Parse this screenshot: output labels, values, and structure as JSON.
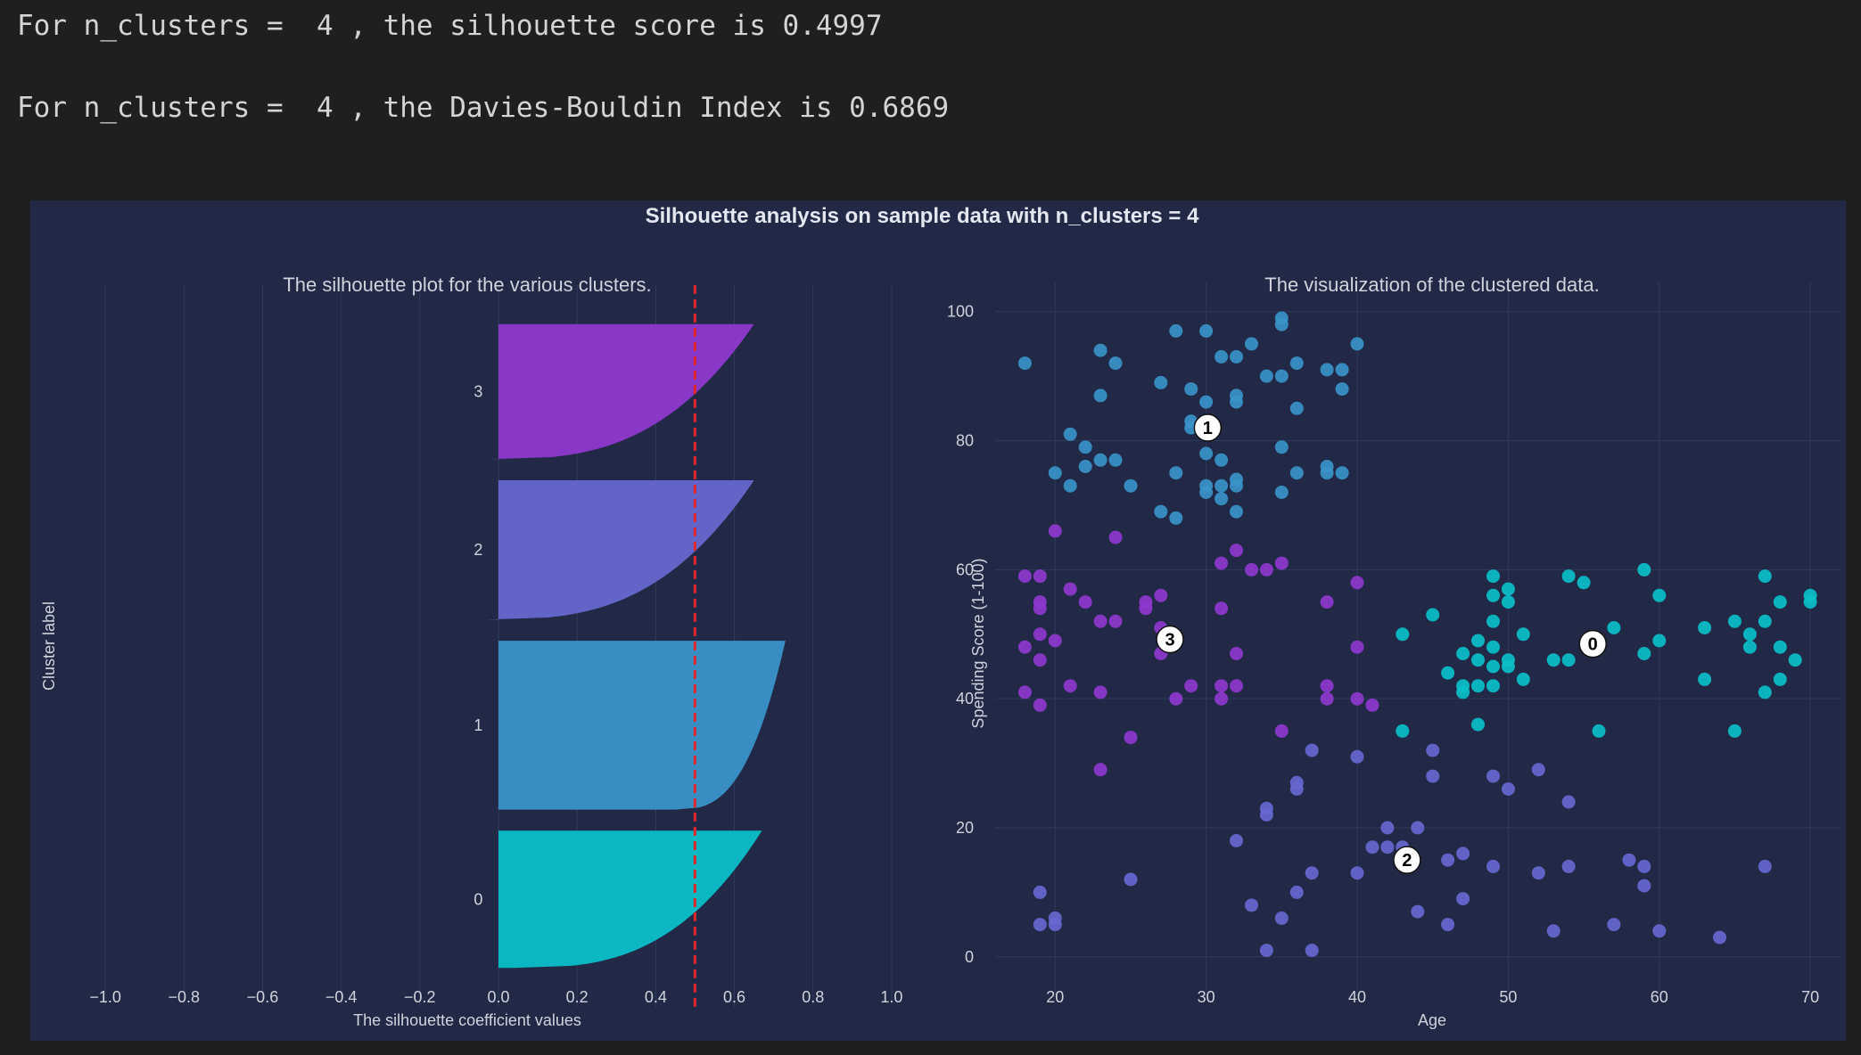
{
  "output": {
    "line1": "For n_clusters =  4 , the silhouette score is 0.4997",
    "line2": "For n_clusters =  4 , the Davies-Bouldin Index is 0.6869"
  },
  "colors": {
    "cell_background": "#1f1f1f",
    "figure_background": "#212946",
    "text": "#d0d3dc",
    "grid": "#2e3a5c",
    "cluster_0": "#0abfca",
    "cluster_1": "#3a93c9",
    "cluster_2": "#6767d0",
    "cluster_3": "#8e38cf",
    "average_line": "#e0262b"
  },
  "chart_data": [
    {
      "type": "area",
      "chart_name": "silhouette",
      "suptitle": "Silhouette analysis on sample data with n_clusters = 4",
      "title": "The silhouette plot for the various clusters.",
      "xlabel": "The silhouette coefficient values",
      "ylabel": "Cluster label",
      "xlim": [
        -1.1,
        1.1
      ],
      "xticks": [
        -1.0,
        -0.8,
        -0.6,
        -0.4,
        -0.2,
        0.0,
        0.2,
        0.4,
        0.6,
        0.8,
        1.0
      ],
      "xtick_labels": [
        "−1.0",
        "−0.8",
        "−0.6",
        "−0.4",
        "−0.2",
        "0.0",
        "0.2",
        "0.4",
        "0.6",
        "0.8",
        "1.0"
      ],
      "average_silhouette": 0.4997,
      "grid": true,
      "clusters": [
        {
          "label": "0",
          "size": 65,
          "max": 0.67,
          "min": 0.04
        },
        {
          "label": "1",
          "size": 80,
          "max": 0.73,
          "min": 0.45
        },
        {
          "label": "2",
          "size": 66,
          "max": 0.65,
          "min": -0.03
        },
        {
          "label": "3",
          "size": 64,
          "max": 0.65,
          "min": -0.02
        }
      ]
    },
    {
      "type": "scatter",
      "chart_name": "clusters",
      "title": "The visualization of the clustered data.",
      "xlabel": "Age",
      "ylabel": "Spending Score (1-100)",
      "xlim": [
        16.5,
        72
      ],
      "ylim": [
        -5,
        103
      ],
      "xticks": [
        20,
        30,
        40,
        50,
        60,
        70
      ],
      "yticks": [
        0,
        20,
        40,
        60,
        80,
        100
      ],
      "grid": true,
      "centers": [
        {
          "label": "0",
          "x": 55.6,
          "y": 48.5
        },
        {
          "label": "1",
          "x": 30.1,
          "y": 82.0
        },
        {
          "label": "2",
          "x": 43.3,
          "y": 15.0
        },
        {
          "label": "3",
          "x": 27.6,
          "y": 49.2
        }
      ],
      "points": {
        "0": [
          [
            43,
            50
          ],
          [
            45,
            53
          ],
          [
            46,
            44
          ],
          [
            47,
            47
          ],
          [
            47,
            42
          ],
          [
            47,
            41
          ],
          [
            48,
            49
          ],
          [
            48,
            46
          ],
          [
            48,
            42
          ],
          [
            48,
            36
          ],
          [
            49,
            59
          ],
          [
            49,
            56
          ],
          [
            49,
            52
          ],
          [
            49,
            48
          ],
          [
            49,
            42
          ],
          [
            50,
            57
          ],
          [
            50,
            55
          ],
          [
            50,
            46
          ],
          [
            50,
            45
          ],
          [
            51,
            50
          ],
          [
            51,
            43
          ],
          [
            53,
            46
          ],
          [
            54,
            59
          ],
          [
            54,
            46
          ],
          [
            55,
            58
          ],
          [
            56,
            35
          ],
          [
            57,
            51
          ],
          [
            59,
            60
          ],
          [
            59,
            47
          ],
          [
            60,
            56
          ],
          [
            60,
            49
          ],
          [
            63,
            51
          ],
          [
            63,
            43
          ],
          [
            65,
            52
          ],
          [
            65,
            35
          ],
          [
            66,
            50
          ],
          [
            66,
            48
          ],
          [
            67,
            59
          ],
          [
            67,
            52
          ],
          [
            67,
            41
          ],
          [
            68,
            55
          ],
          [
            68,
            48
          ],
          [
            68,
            43
          ],
          [
            69,
            46
          ],
          [
            70,
            56
          ],
          [
            70,
            55
          ],
          [
            43,
            35
          ],
          [
            49,
            45
          ]
        ],
        "1": [
          [
            18,
            92
          ],
          [
            21,
            81
          ],
          [
            22,
            79
          ],
          [
            22,
            76
          ],
          [
            23,
            94
          ],
          [
            23,
            87
          ],
          [
            23,
            77
          ],
          [
            24,
            92
          ],
          [
            24,
            77
          ],
          [
            25,
            73
          ],
          [
            27,
            89
          ],
          [
            27,
            69
          ],
          [
            28,
            97
          ],
          [
            28,
            75
          ],
          [
            28,
            68
          ],
          [
            29,
            88
          ],
          [
            29,
            83
          ],
          [
            29,
            82
          ],
          [
            30,
            97
          ],
          [
            30,
            86
          ],
          [
            30,
            78
          ],
          [
            30,
            73
          ],
          [
            30,
            72
          ],
          [
            31,
            93
          ],
          [
            31,
            77
          ],
          [
            31,
            73
          ],
          [
            31,
            71
          ],
          [
            32,
            93
          ],
          [
            32,
            87
          ],
          [
            32,
            86
          ],
          [
            32,
            74
          ],
          [
            32,
            73
          ],
          [
            32,
            69
          ],
          [
            33,
            95
          ],
          [
            34,
            90
          ],
          [
            35,
            99
          ],
          [
            35,
            98
          ],
          [
            35,
            90
          ],
          [
            35,
            79
          ],
          [
            35,
            72
          ],
          [
            36,
            92
          ],
          [
            36,
            85
          ],
          [
            36,
            75
          ],
          [
            38,
            91
          ],
          [
            38,
            76
          ],
          [
            38,
            75
          ],
          [
            39,
            91
          ],
          [
            39,
            88
          ],
          [
            39,
            75
          ],
          [
            40,
            95
          ],
          [
            20,
            75
          ],
          [
            21,
            73
          ]
        ],
        "2": [
          [
            19,
            10
          ],
          [
            19,
            5
          ],
          [
            20,
            6
          ],
          [
            20,
            5
          ],
          [
            25,
            12
          ],
          [
            32,
            18
          ],
          [
            33,
            8
          ],
          [
            34,
            23
          ],
          [
            34,
            22
          ],
          [
            34,
            1
          ],
          [
            35,
            6
          ],
          [
            36,
            27
          ],
          [
            36,
            26
          ],
          [
            36,
            10
          ],
          [
            37,
            32
          ],
          [
            37,
            13
          ],
          [
            37,
            1
          ],
          [
            40,
            31
          ],
          [
            40,
            13
          ],
          [
            41,
            17
          ],
          [
            42,
            20
          ],
          [
            42,
            17
          ],
          [
            43,
            17
          ],
          [
            44,
            20
          ],
          [
            44,
            7
          ],
          [
            45,
            32
          ],
          [
            45,
            28
          ],
          [
            46,
            15
          ],
          [
            46,
            5
          ],
          [
            47,
            16
          ],
          [
            47,
            9
          ],
          [
            49,
            28
          ],
          [
            49,
            14
          ],
          [
            50,
            26
          ],
          [
            52,
            29
          ],
          [
            52,
            13
          ],
          [
            53,
            4
          ],
          [
            54,
            24
          ],
          [
            54,
            14
          ],
          [
            57,
            5
          ],
          [
            58,
            15
          ],
          [
            59,
            14
          ],
          [
            59,
            11
          ],
          [
            60,
            4
          ],
          [
            64,
            3
          ],
          [
            67,
            14
          ]
        ],
        "3": [
          [
            18,
            59
          ],
          [
            18,
            48
          ],
          [
            18,
            41
          ],
          [
            19,
            59
          ],
          [
            19,
            55
          ],
          [
            19,
            54
          ],
          [
            19,
            50
          ],
          [
            19,
            46
          ],
          [
            19,
            39
          ],
          [
            20,
            66
          ],
          [
            20,
            49
          ],
          [
            21,
            57
          ],
          [
            21,
            42
          ],
          [
            22,
            55
          ],
          [
            23,
            52
          ],
          [
            23,
            41
          ],
          [
            23,
            29
          ],
          [
            24,
            65
          ],
          [
            24,
            52
          ],
          [
            25,
            34
          ],
          [
            26,
            55
          ],
          [
            26,
            54
          ],
          [
            27,
            56
          ],
          [
            27,
            51
          ],
          [
            27,
            47
          ],
          [
            28,
            40
          ],
          [
            29,
            42
          ],
          [
            31,
            61
          ],
          [
            31,
            54
          ],
          [
            31,
            42
          ],
          [
            31,
            40
          ],
          [
            32,
            63
          ],
          [
            32,
            47
          ],
          [
            32,
            42
          ],
          [
            33,
            60
          ],
          [
            34,
            60
          ],
          [
            35,
            61
          ],
          [
            35,
            35
          ],
          [
            38,
            55
          ],
          [
            38,
            42
          ],
          [
            38,
            40
          ],
          [
            40,
            58
          ],
          [
            40,
            48
          ],
          [
            40,
            40
          ],
          [
            41,
            39
          ]
        ]
      }
    }
  ]
}
